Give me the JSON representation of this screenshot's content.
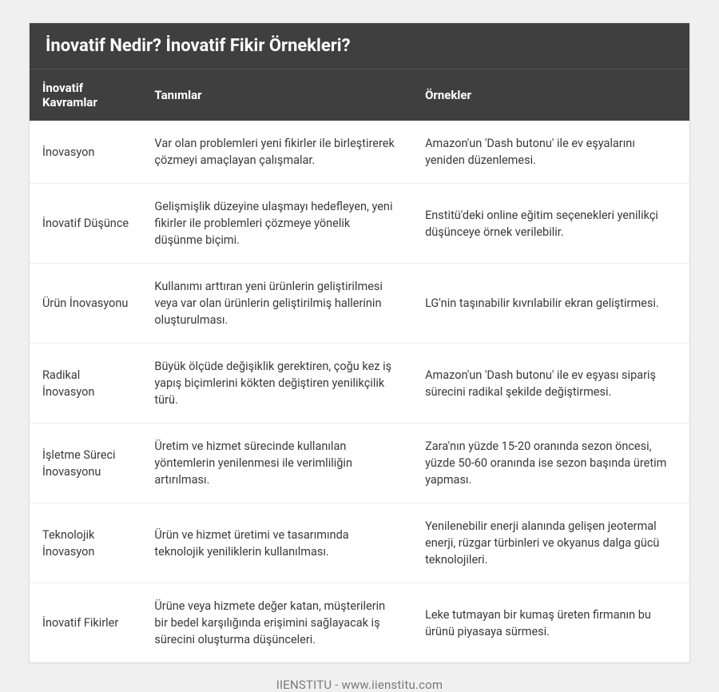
{
  "title": "İnovatif Nedir? İnovatif Fikir Örnekleri?",
  "columns": [
    "İnovatif Kavramlar",
    "Tanımlar",
    "Örnekler"
  ],
  "rows": [
    {
      "concept": "İnovasyon",
      "definition": "Var olan problemleri yeni fikirler ile birleştirerek çözmeyi amaçlayan çalışmalar.",
      "example": "Amazon'un 'Dash butonu' ile ev eşyalarını yeniden düzenlemesi."
    },
    {
      "concept": "İnovatif Düşünce",
      "definition": "Gelişmişlik düzeyine ulaşmayı hedefleyen, yeni fikirler ile problemleri çözmeye yönelik düşünme biçimi.",
      "example": "Enstitü'deki online eğitim seçenekleri yenilikçi düşünceye örnek verilebilir."
    },
    {
      "concept": "Ürün İnovasyonu",
      "definition": "Kullanımı arttıran yeni ürünlerin geliştirilmesi veya var olan ürünlerin geliştirilmiş hallerinin oluşturulması.",
      "example": "LG'nin taşınabilir kıvrılabilir ekran geliştirmesi."
    },
    {
      "concept": "Radikal İnovasyon",
      "definition": "Büyük ölçüde değişiklik gerektiren, çoğu kez iş yapış biçimlerini kökten değiştiren yenilikçilik türü.",
      "example": "Amazon'un 'Dash butonu' ile ev eşyası sipariş sürecini radikal şekilde değiştirmesi."
    },
    {
      "concept": "İşletme Süreci İnovasyonu",
      "definition": "Üretim ve hizmet sürecinde kullanılan yöntemlerin yenilenmesi ile verimliliğin artırılması.",
      "example": "Zara'nın yüzde 15-20 oranında sezon öncesi, yüzde 50-60 oranında ise sezon başında üretim yapması."
    },
    {
      "concept": "Teknolojik İnovasyon",
      "definition": "Ürün ve hizmet üretimi ve tasarımında teknolojik yeniliklerin kullanılması.",
      "example": "Yenilenebilir enerji alanında gelişen jeotermal enerji, rüzgar türbinleri ve okyanus dalga gücü teknolojileri."
    },
    {
      "concept": "İnovatif Fikirler",
      "definition": "Ürüne veya hizmete değer katan, müşterilerin bir bedel karşılığında erişimini sağlayacak iş sürecini oluşturma düşünceleri.",
      "example": "Leke tutmayan bir kumaş üreten firmanın bu ürünü piyasaya sürmesi."
    }
  ],
  "footer": "IIENSTITU - www.iienstitu.com",
  "styling": {
    "header_bg": "#3f3f3f",
    "header_text": "#ffffff",
    "body_bg": "#f0f0f0",
    "card_bg": "#ffffff",
    "border_color": "#dcdcdc",
    "row_border": "#ececec",
    "title_fontsize": 22,
    "header_fontsize": 15,
    "cell_fontsize": 14.5,
    "column_widths_pct": [
      17,
      41,
      42
    ]
  }
}
